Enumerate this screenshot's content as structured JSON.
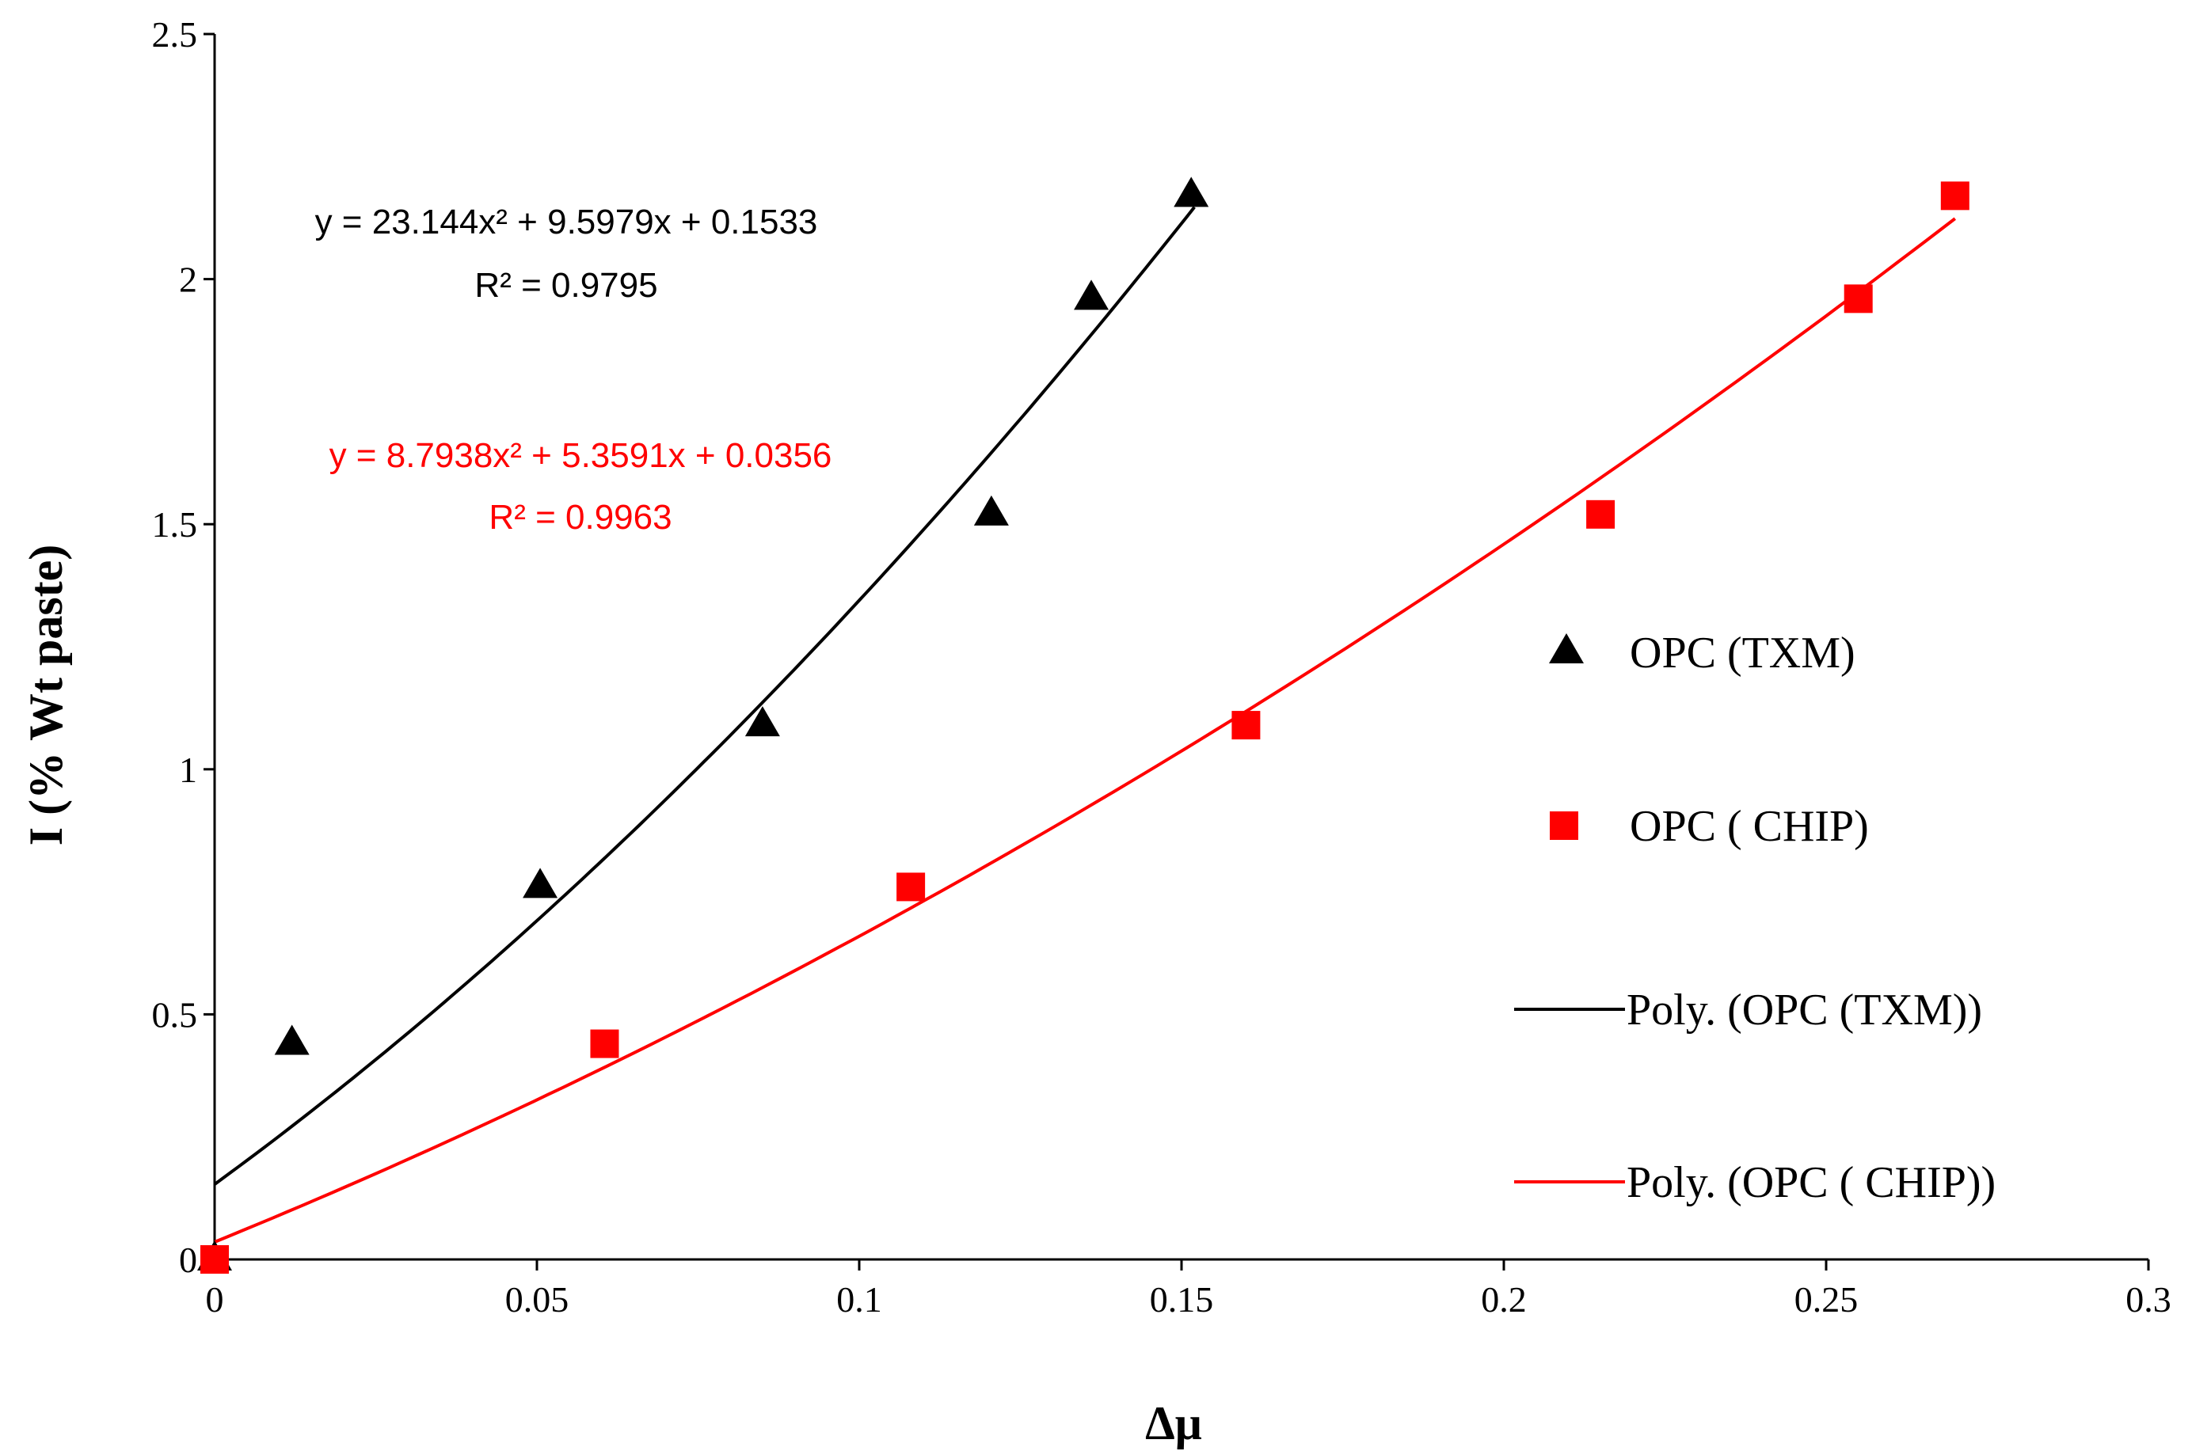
{
  "chart_data": {
    "type": "scatter",
    "xlabel": "Δμ",
    "ylabel": "I (% Wt paste)",
    "xlim": [
      0,
      0.3
    ],
    "ylim": [
      0,
      2.5
    ],
    "x_ticks": [
      "0",
      "0.05",
      "0.1",
      "0.15",
      "0.2",
      "0.25",
      "0.3"
    ],
    "y_ticks": [
      "0",
      "0.5",
      "1",
      "1.5",
      "2",
      "2.5"
    ],
    "grid": false,
    "series": [
      {
        "name": "OPC (TXM)",
        "marker": "triangle",
        "color": "#000000",
        "x": [
          0.0,
          0.012,
          0.0505,
          0.085,
          0.1205,
          0.136,
          0.1515
        ],
        "y": [
          0.0,
          0.44,
          0.76,
          1.09,
          1.52,
          1.96,
          2.17
        ]
      },
      {
        "name": "OPC ( CHIP)",
        "marker": "square",
        "color": "#ff0000",
        "x": [
          0.0,
          0.0605,
          0.108,
          0.16,
          0.215,
          0.255,
          0.27
        ],
        "y": [
          0.0,
          0.44,
          0.76,
          1.09,
          1.52,
          1.96,
          2.17
        ]
      }
    ],
    "trendlines": [
      {
        "name": "Poly. (OPC (TXM))",
        "color": "#000000",
        "coefficients": [
          23.144,
          9.5979,
          0.1533
        ],
        "x_range": [
          0,
          0.152
        ],
        "equation": "y = 23.144x² + 9.5979x + 0.1533",
        "r2": "R² = 0.9795"
      },
      {
        "name": "Poly. (OPC ( CHIP))",
        "color": "#ff0000",
        "coefficients": [
          8.7938,
          5.3591,
          0.0356
        ],
        "x_range": [
          0,
          0.27
        ],
        "equation": "y = 8.7938x² + 5.3591x + 0.0356",
        "r2": "R² = 0.9963"
      }
    ],
    "legend": {
      "placement": "right",
      "entries": [
        "OPC (TXM)",
        "OPC ( CHIP)",
        "Poly. (OPC (TXM))",
        "Poly. (OPC ( CHIP))"
      ]
    }
  }
}
